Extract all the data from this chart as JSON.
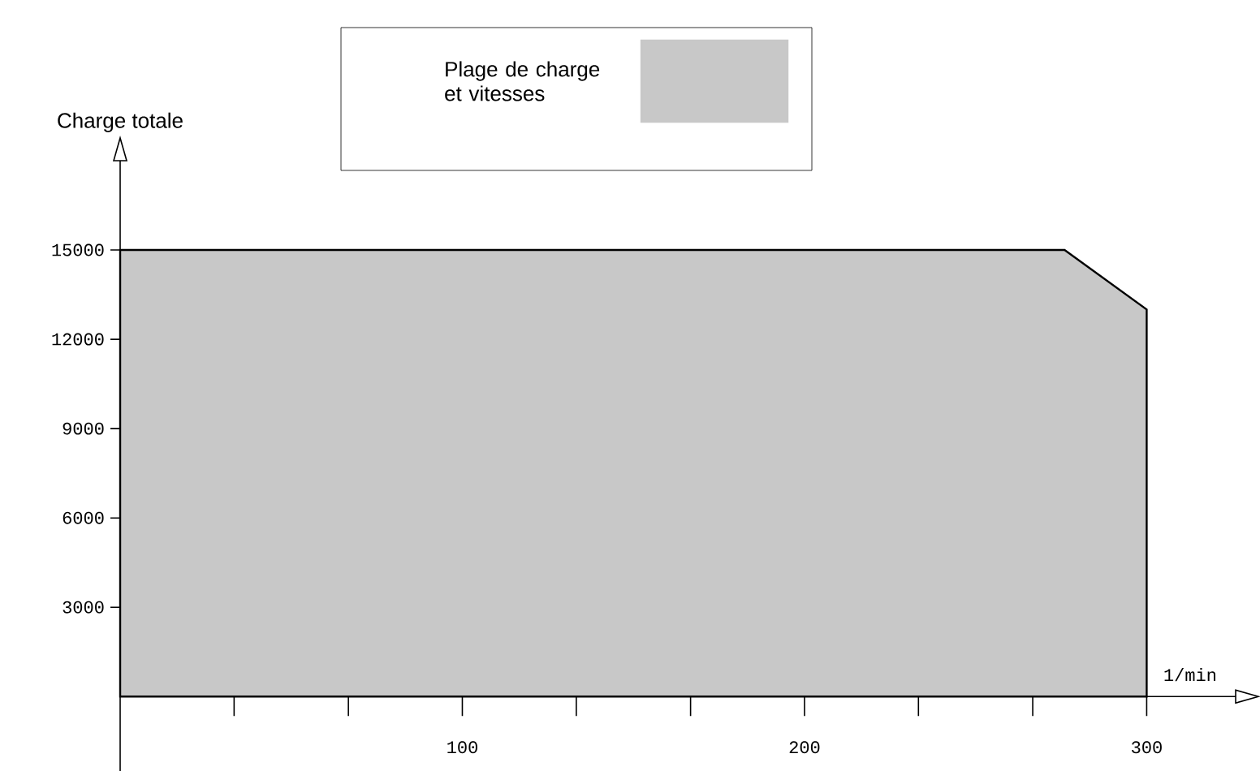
{
  "chart_data": {
    "type": "area",
    "xlabel": "1/min",
    "ylabel": "Charge totale",
    "legend_title": "Plage de charge et vitesses",
    "x": [
      0,
      276,
      300
    ],
    "series": [
      {
        "color": "#c8c8c8",
        "values": [
          15000,
          15000,
          13000
        ]
      }
    ],
    "xlim": [
      0,
      326
    ],
    "ylim": [
      -2500,
      18000
    ],
    "xticks": [
      {
        "value": 33.3,
        "label": null
      },
      {
        "value": 66.7,
        "label": null
      },
      100,
      {
        "value": 133.3,
        "label": null
      },
      {
        "value": 166.7,
        "label": null
      },
      200,
      {
        "value": 233.3,
        "label": null
      },
      {
        "value": 266.7,
        "label": null
      },
      300
    ],
    "yticks": [
      3000,
      6000,
      9000,
      12000,
      15000
    ],
    "grid": false
  }
}
